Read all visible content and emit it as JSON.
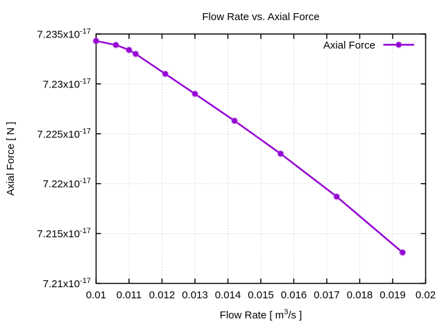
{
  "figure": {
    "title": "Flow Rate vs. Axial Force"
  },
  "chart_data": {
    "type": "line",
    "title": "Flow Rate vs. Axial Force",
    "xlabel": {
      "pre": "Flow Rate [ m",
      "sup": "3",
      "post": "/s ]"
    },
    "ylabel": "Axial Force [ N ]",
    "legend": {
      "label": "Axial Force",
      "position": "top-right"
    },
    "grid": true,
    "grid_style": "dotted",
    "xlim": [
      0.01,
      0.02
    ],
    "ylim": [
      7.21e-17,
      7.235e-17
    ],
    "x_ticks": [
      {
        "value": 0.01,
        "label": "0.01"
      },
      {
        "value": 0.011,
        "label": "0.011"
      },
      {
        "value": 0.012,
        "label": "0.012"
      },
      {
        "value": 0.013,
        "label": "0.013"
      },
      {
        "value": 0.014,
        "label": "0.014"
      },
      {
        "value": 0.015,
        "label": "0.015"
      },
      {
        "value": 0.016,
        "label": "0.016"
      },
      {
        "value": 0.017,
        "label": "0.017"
      },
      {
        "value": 0.018,
        "label": "0.018"
      },
      {
        "value": 0.019,
        "label": "0.019"
      },
      {
        "value": 0.02,
        "label": "0.02"
      }
    ],
    "y_ticks": [
      {
        "value": 7.21e-17,
        "base": "7.21x10",
        "sup": "-17"
      },
      {
        "value": 7.215e-17,
        "base": "7.215x10",
        "sup": "-17"
      },
      {
        "value": 7.22e-17,
        "base": "7.22x10",
        "sup": "-17"
      },
      {
        "value": 7.225e-17,
        "base": "7.225x10",
        "sup": "-17"
      },
      {
        "value": 7.23e-17,
        "base": "7.23x10",
        "sup": "-17"
      },
      {
        "value": 7.235e-17,
        "base": "7.235x10",
        "sup": "-17"
      }
    ],
    "series": [
      {
        "name": "Axial Force",
        "color": "#9400d3",
        "marker": "filled-circle",
        "x": [
          0.01,
          0.0106,
          0.011,
          0.0112,
          0.0121,
          0.013,
          0.0142,
          0.0156,
          0.0173,
          0.0193
        ],
        "y": [
          7.2343e-17,
          7.2339e-17,
          7.2334e-17,
          7.233e-17,
          7.231e-17,
          7.229e-17,
          7.2263e-17,
          7.223e-17,
          7.2187e-17,
          7.2131e-17
        ]
      }
    ],
    "colors": {
      "line": "#9400d3",
      "marker_halo": "#b266e0",
      "grid": "#c0c0c0",
      "axis": "#000000",
      "text": "#000000",
      "background": "#ffffff"
    }
  }
}
